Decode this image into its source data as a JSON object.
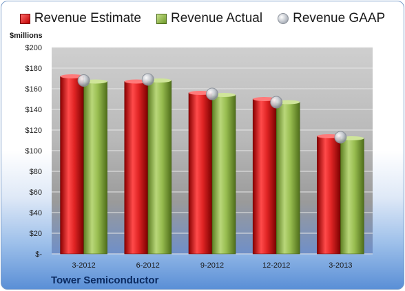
{
  "legend": {
    "estimate": "Revenue Estimate",
    "actual": "Revenue Actual",
    "gaap": "Revenue GAAP"
  },
  "units_label": "$millions",
  "company_label": "Tower Semiconductor",
  "colors": {
    "estimate": "#c81e1e",
    "actual": "#8fb345",
    "gaap": "#c9ccd2",
    "plot_background": "#bdbdbd",
    "gridline": "#e6e6e6"
  },
  "chart_data": {
    "type": "bar",
    "categories": [
      "3-2012",
      "6-2012",
      "9-2012",
      "12-2012",
      "3-2013"
    ],
    "series": [
      {
        "name": "Revenue Estimate",
        "values": [
          172,
          167,
          156,
          150,
          114
        ]
      },
      {
        "name": "Revenue Actual",
        "values": [
          167,
          168,
          154,
          147,
          112
        ]
      },
      {
        "name": "Revenue GAAP",
        "values": [
          168,
          169,
          155,
          147,
          113
        ],
        "marker": "circle"
      }
    ],
    "ylim": [
      0,
      200
    ],
    "ytick_values": [
      0,
      20,
      40,
      60,
      80,
      100,
      120,
      140,
      160,
      180,
      200
    ],
    "ytick_labels": [
      "$-",
      "$20",
      "$40",
      "$60",
      "$80",
      "$100",
      "$120",
      "$140",
      "$160",
      "$180",
      "$200"
    ],
    "grid": true,
    "legend_position": "top"
  }
}
